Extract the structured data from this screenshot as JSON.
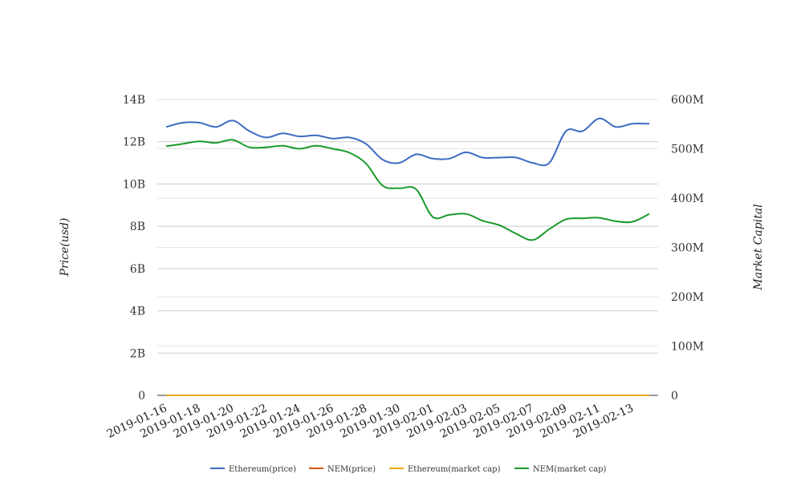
{
  "chart_data": {
    "type": "line",
    "title": "",
    "xlabel": "",
    "ylabel_left": "Price(usd)",
    "ylabel_right": "Market Capital",
    "grid": true,
    "legend_position": "bottom",
    "ylim_left": [
      0,
      14000000000
    ],
    "ylim_right": [
      0,
      600000000
    ],
    "y_ticks_left": [
      "0",
      "2B",
      "4B",
      "6B",
      "8B",
      "10B",
      "12B",
      "14B"
    ],
    "y_ticks_right": [
      "0",
      "100M",
      "200M",
      "300M",
      "400M",
      "500M",
      "600M"
    ],
    "x": [
      "2019-01-16",
      "2019-01-17",
      "2019-01-18",
      "2019-01-19",
      "2019-01-20",
      "2019-01-21",
      "2019-01-22",
      "2019-01-23",
      "2019-01-24",
      "2019-01-25",
      "2019-01-26",
      "2019-01-27",
      "2019-01-28",
      "2019-01-29",
      "2019-01-30",
      "2019-01-31",
      "2019-02-01",
      "2019-02-02",
      "2019-02-03",
      "2019-02-04",
      "2019-02-05",
      "2019-02-06",
      "2019-02-07",
      "2019-02-08",
      "2019-02-09",
      "2019-02-10",
      "2019-02-11",
      "2019-02-12",
      "2019-02-13",
      "2019-02-14"
    ],
    "x_tick_labels": [
      "2019-01-16",
      "2019-01-18",
      "2019-01-20",
      "2019-01-22",
      "2019-01-24",
      "2019-01-26",
      "2019-01-28",
      "2019-01-30",
      "2019-02-01",
      "2019-02-03",
      "2019-02-05",
      "2019-02-07",
      "2019-02-09",
      "2019-02-11",
      "2019-02-13"
    ],
    "series": [
      {
        "name": "Ethereum(price)",
        "axis": "left",
        "color": "#3d6bc0",
        "values": [
          12700000000,
          12900000000,
          12900000000,
          12700000000,
          13000000000,
          12500000000,
          12200000000,
          12400000000,
          12250000000,
          12300000000,
          12150000000,
          12200000000,
          11900000000,
          11150000000,
          11000000000,
          11400000000,
          11200000000,
          11200000000,
          11500000000,
          11250000000,
          11250000000,
          11250000000,
          11000000000,
          11000000000,
          12500000000,
          12500000000,
          13100000000,
          12700000000,
          12850000000,
          12850000000
        ]
      },
      {
        "name": "NEM(price)",
        "axis": "left",
        "color": "#d95319",
        "values": [
          0,
          0,
          0,
          0,
          0,
          0,
          0,
          0,
          0,
          0,
          0,
          0,
          0,
          0,
          0,
          0,
          0,
          0,
          0,
          0,
          0,
          0,
          0,
          0,
          0,
          0,
          0,
          0,
          0,
          0
        ]
      },
      {
        "name": "Ethereum(market cap)",
        "axis": "left",
        "color": "#f0a800",
        "values": [
          0,
          0,
          0,
          0,
          0,
          0,
          0,
          0,
          0,
          0,
          0,
          0,
          0,
          0,
          0,
          0,
          0,
          0,
          0,
          0,
          0,
          0,
          0,
          0,
          0,
          0,
          0,
          0,
          0,
          0
        ]
      },
      {
        "name": "NEM(market cap)",
        "axis": "right",
        "color": "#1a9a2a",
        "values": [
          505000000,
          510000000,
          515000000,
          512000000,
          518000000,
          503000000,
          503000000,
          506000000,
          500000000,
          506000000,
          500000000,
          492000000,
          470000000,
          425000000,
          420000000,
          418000000,
          362000000,
          366000000,
          368000000,
          354000000,
          345000000,
          328000000,
          315000000,
          337000000,
          357000000,
          359000000,
          360000000,
          353000000,
          352000000,
          368000000
        ]
      }
    ]
  }
}
